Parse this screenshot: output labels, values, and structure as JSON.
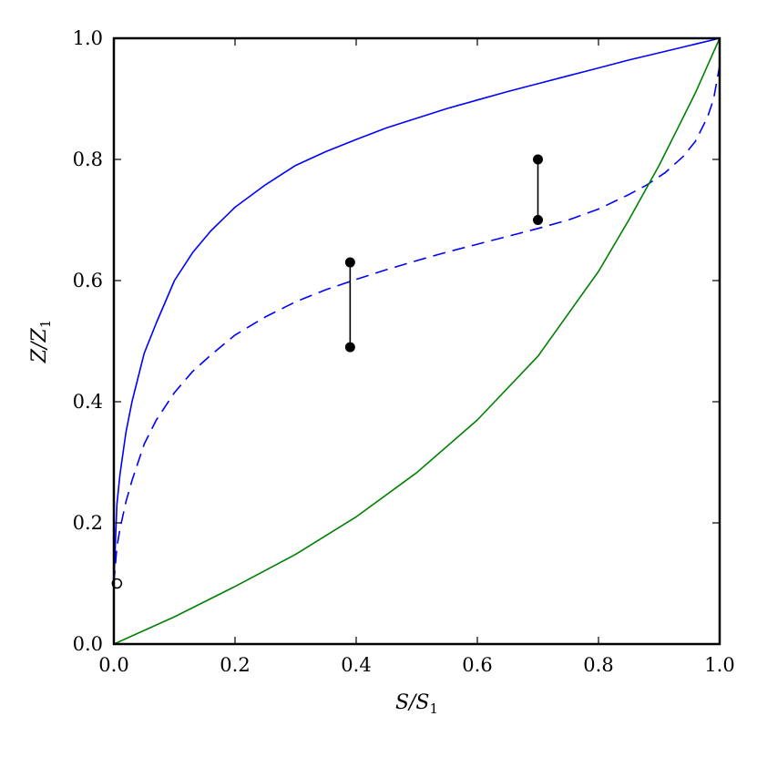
{
  "chart_data": {
    "type": "line",
    "xlabel": "S/S",
    "xlabel_sub": "1",
    "ylabel": "Z/Z",
    "ylabel_sub": "1",
    "xlim": [
      0.0,
      1.0
    ],
    "ylim": [
      0.0,
      1.0
    ],
    "grid": false,
    "x_ticks": [
      "0.0",
      "0.2",
      "0.4",
      "0.6",
      "0.8",
      "1.0"
    ],
    "y_ticks": [
      "0.0",
      "0.2",
      "0.4",
      "0.6",
      "0.8",
      "1.0"
    ],
    "series": [
      {
        "style": "solid",
        "color": "#0000ff",
        "x": [
          0.0,
          0.005,
          0.01,
          0.02,
          0.03,
          0.05,
          0.07,
          0.1,
          0.13,
          0.16,
          0.2,
          0.25,
          0.3,
          0.35,
          0.4,
          0.45,
          0.5,
          0.55,
          0.6,
          0.65,
          0.7,
          0.75,
          0.8,
          0.85,
          0.9,
          0.95,
          1.0
        ],
        "y": [
          0.1,
          0.23,
          0.28,
          0.35,
          0.4,
          0.48,
          0.53,
          0.6,
          0.646,
          0.682,
          0.721,
          0.758,
          0.79,
          0.813,
          0.833,
          0.852,
          0.868,
          0.884,
          0.898,
          0.912,
          0.925,
          0.938,
          0.951,
          0.964,
          0.976,
          0.988,
          1.0
        ]
      },
      {
        "style": "dashed",
        "color": "#0000ff",
        "x": [
          0.0,
          0.005,
          0.01,
          0.02,
          0.03,
          0.05,
          0.07,
          0.1,
          0.13,
          0.16,
          0.2,
          0.25,
          0.3,
          0.35,
          0.4,
          0.45,
          0.5,
          0.55,
          0.6,
          0.65,
          0.7,
          0.75,
          0.8,
          0.85,
          0.88,
          0.91,
          0.94,
          0.96,
          0.98,
          0.99,
          1.0
        ],
        "y": [
          0.1,
          0.16,
          0.19,
          0.235,
          0.27,
          0.33,
          0.37,
          0.415,
          0.45,
          0.477,
          0.51,
          0.54,
          0.565,
          0.585,
          0.602,
          0.618,
          0.633,
          0.647,
          0.66,
          0.673,
          0.686,
          0.7,
          0.718,
          0.742,
          0.758,
          0.778,
          0.805,
          0.83,
          0.87,
          0.9,
          0.955
        ]
      },
      {
        "style": "solid",
        "color": "#008000",
        "x": [
          0.0,
          0.1,
          0.2,
          0.3,
          0.4,
          0.5,
          0.6,
          0.7,
          0.8,
          0.85,
          0.9,
          0.93,
          0.96,
          0.98,
          1.0
        ],
        "y": [
          0.0,
          0.045,
          0.095,
          0.148,
          0.21,
          0.283,
          0.37,
          0.475,
          0.615,
          0.7,
          0.79,
          0.85,
          0.91,
          0.955,
          1.0
        ]
      }
    ],
    "intervals": [
      {
        "x": 0.39,
        "y_low": 0.49,
        "y_high": 0.63
      },
      {
        "x": 0.7,
        "y_low": 0.7,
        "y_high": 0.8
      }
    ],
    "open_marker": {
      "x": 0.005,
      "y": 0.1
    }
  }
}
